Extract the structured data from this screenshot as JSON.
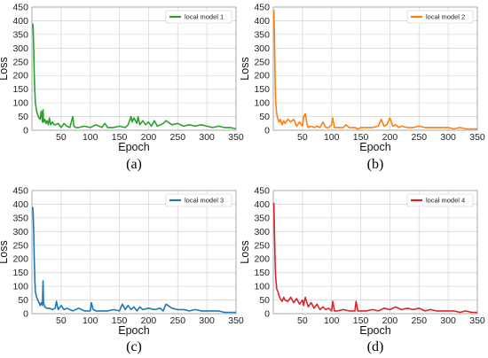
{
  "chart_data": [
    {
      "panel": "a",
      "caption": "(a)",
      "type": "line",
      "xlabel": "Epoch",
      "ylabel": "Loss",
      "xlim": [
        0,
        350
      ],
      "ylim": [
        0,
        450
      ],
      "xticks": [
        50,
        100,
        150,
        200,
        250,
        300,
        350
      ],
      "yticks": [
        0,
        50,
        100,
        150,
        200,
        250,
        300,
        350,
        400,
        450
      ],
      "grid": true,
      "legend": "top-right",
      "series": [
        {
          "name": "local model 1",
          "color": "#2ca02c",
          "x": [
            1,
            2,
            3,
            4,
            5,
            6,
            8,
            10,
            12,
            14,
            16,
            18,
            19,
            20,
            22,
            24,
            26,
            28,
            30,
            32,
            35,
            38,
            40,
            45,
            50,
            55,
            60,
            65,
            70,
            72,
            75,
            80,
            90,
            100,
            110,
            120,
            125,
            130,
            140,
            150,
            160,
            165,
            170,
            172,
            175,
            180,
            182,
            185,
            190,
            195,
            200,
            205,
            210,
            215,
            220,
            225,
            230,
            240,
            250,
            260,
            270,
            280,
            290,
            300,
            310,
            320,
            330,
            340,
            350
          ],
          "values": [
            390,
            380,
            300,
            200,
            140,
            100,
            70,
            55,
            45,
            40,
            70,
            30,
            75,
            30,
            40,
            25,
            35,
            20,
            45,
            20,
            30,
            20,
            20,
            25,
            10,
            25,
            15,
            10,
            50,
            15,
            10,
            10,
            15,
            10,
            20,
            10,
            25,
            10,
            10,
            15,
            10,
            20,
            50,
            30,
            45,
            25,
            50,
            20,
            35,
            20,
            30,
            15,
            35,
            15,
            20,
            25,
            35,
            20,
            25,
            15,
            20,
            15,
            20,
            15,
            10,
            15,
            10,
            10,
            5
          ]
        }
      ]
    },
    {
      "panel": "b",
      "caption": "(b)",
      "type": "line",
      "xlabel": "Epoch",
      "ylabel": "Loss",
      "xlim": [
        0,
        350
      ],
      "ylim": [
        0,
        450
      ],
      "xticks": [
        50,
        100,
        150,
        200,
        250,
        300,
        350
      ],
      "yticks": [
        0,
        50,
        100,
        150,
        200,
        250,
        300,
        350,
        400,
        450
      ],
      "grid": true,
      "legend": "top-right",
      "series": [
        {
          "name": "local model 2",
          "color": "#ff7f0e",
          "x": [
            1,
            2,
            3,
            4,
            5,
            6,
            8,
            10,
            12,
            15,
            18,
            20,
            25,
            30,
            35,
            40,
            45,
            50,
            52,
            55,
            58,
            60,
            65,
            70,
            75,
            80,
            85,
            90,
            95,
            100,
            102,
            105,
            110,
            120,
            125,
            130,
            140,
            145,
            150,
            160,
            170,
            180,
            185,
            190,
            195,
            200,
            205,
            210,
            215,
            220,
            230,
            240,
            250,
            260,
            270,
            280,
            290,
            300,
            310,
            320,
            330,
            340,
            350
          ],
          "values": [
            440,
            350,
            200,
            110,
            80,
            60,
            40,
            30,
            40,
            20,
            35,
            25,
            40,
            30,
            40,
            15,
            30,
            15,
            50,
            60,
            20,
            10,
            15,
            10,
            15,
            10,
            30,
            10,
            10,
            20,
            45,
            10,
            10,
            10,
            20,
            10,
            10,
            5,
            10,
            10,
            10,
            15,
            40,
            15,
            20,
            45,
            15,
            20,
            10,
            15,
            10,
            10,
            15,
            10,
            10,
            10,
            10,
            10,
            5,
            10,
            5,
            5,
            5
          ]
        }
      ]
    },
    {
      "panel": "c",
      "caption": "(c)",
      "type": "line",
      "xlabel": "Epoch",
      "ylabel": "Loss",
      "xlim": [
        0,
        350
      ],
      "ylim": [
        0,
        450
      ],
      "xticks": [
        50,
        100,
        150,
        200,
        250,
        300,
        350
      ],
      "yticks": [
        0,
        50,
        100,
        150,
        200,
        250,
        300,
        350,
        400,
        450
      ],
      "grid": true,
      "legend": "top-right",
      "series": [
        {
          "name": "local model 3",
          "color": "#1f77b4",
          "x": [
            1,
            2,
            3,
            4,
            5,
            6,
            8,
            10,
            12,
            14,
            16,
            18,
            19,
            20,
            22,
            25,
            30,
            35,
            40,
            42,
            45,
            50,
            55,
            60,
            70,
            80,
            90,
            100,
            102,
            105,
            110,
            120,
            130,
            140,
            150,
            155,
            160,
            165,
            170,
            175,
            180,
            185,
            190,
            200,
            210,
            220,
            225,
            230,
            240,
            250,
            260,
            270,
            280,
            290,
            300,
            310,
            320,
            330,
            340,
            350
          ],
          "values": [
            390,
            370,
            300,
            200,
            120,
            80,
            60,
            50,
            40,
            30,
            40,
            30,
            120,
            40,
            25,
            20,
            20,
            15,
            20,
            45,
            15,
            30,
            15,
            20,
            10,
            20,
            10,
            10,
            40,
            15,
            10,
            10,
            10,
            15,
            10,
            35,
            15,
            30,
            15,
            25,
            10,
            25,
            15,
            20,
            15,
            20,
            10,
            35,
            20,
            15,
            15,
            10,
            15,
            10,
            10,
            10,
            10,
            5,
            5,
            5
          ]
        }
      ]
    },
    {
      "panel": "d",
      "caption": "(d)",
      "type": "line",
      "xlabel": "Epoch",
      "ylabel": "Loss",
      "xlim": [
        0,
        350
      ],
      "ylim": [
        0,
        450
      ],
      "xticks": [
        50,
        100,
        150,
        200,
        250,
        300,
        350
      ],
      "yticks": [
        0,
        50,
        100,
        150,
        200,
        250,
        300,
        350,
        400,
        450
      ],
      "grid": true,
      "legend": "top-right",
      "series": [
        {
          "name": "local model 4",
          "color": "#d62728",
          "x": [
            1,
            2,
            3,
            4,
            5,
            6,
            8,
            10,
            12,
            15,
            18,
            20,
            25,
            30,
            35,
            40,
            45,
            50,
            52,
            55,
            60,
            65,
            70,
            75,
            80,
            85,
            90,
            95,
            100,
            102,
            105,
            110,
            120,
            130,
            140,
            142,
            145,
            150,
            160,
            170,
            180,
            190,
            200,
            210,
            220,
            230,
            240,
            250,
            260,
            270,
            280,
            290,
            300,
            310,
            320,
            330,
            340,
            350
          ],
          "values": [
            405,
            300,
            200,
            140,
            110,
            90,
            80,
            65,
            55,
            45,
            60,
            50,
            45,
            60,
            40,
            55,
            35,
            50,
            30,
            60,
            25,
            40,
            20,
            35,
            15,
            25,
            15,
            20,
            10,
            45,
            10,
            10,
            15,
            10,
            10,
            45,
            10,
            10,
            10,
            15,
            10,
            20,
            15,
            25,
            15,
            20,
            15,
            20,
            10,
            15,
            10,
            10,
            10,
            10,
            5,
            10,
            5,
            5
          ]
        }
      ]
    }
  ]
}
